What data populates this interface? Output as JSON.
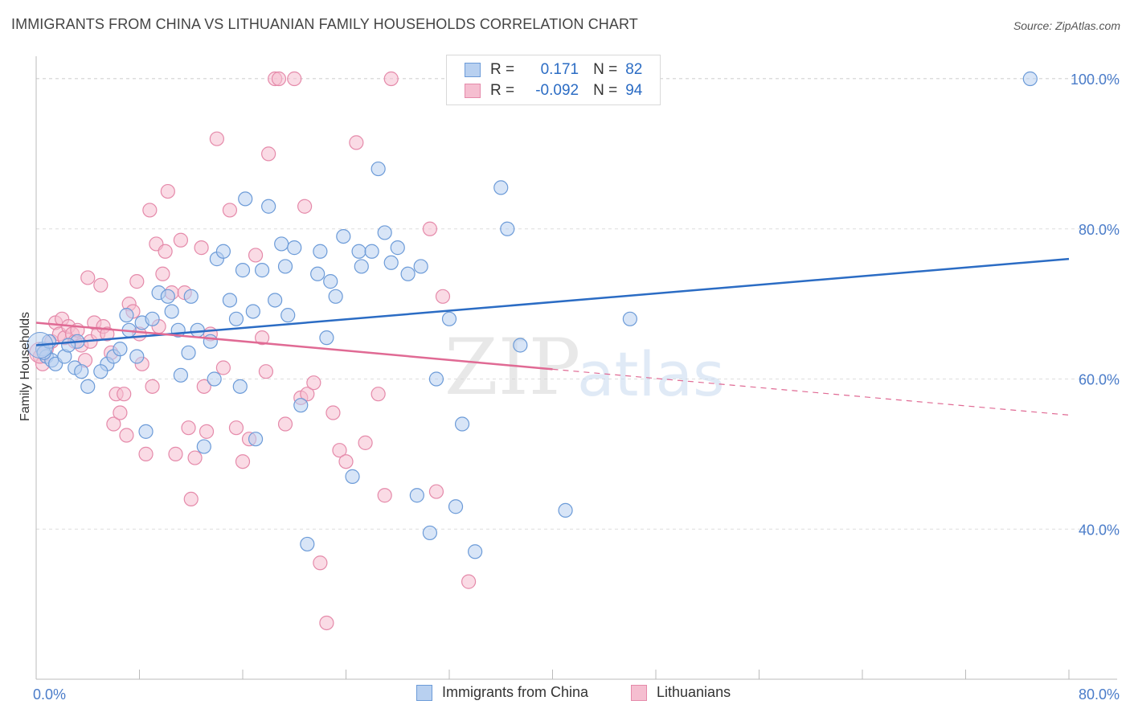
{
  "title": "IMMIGRANTS FROM CHINA VS LITHUANIAN FAMILY HOUSEHOLDS CORRELATION CHART",
  "source": "Source: ZipAtlas.com",
  "legend": {
    "rows": [
      {
        "r_label": "R =",
        "r_value": "0.171",
        "n_label": "N =",
        "n_value": "82"
      },
      {
        "r_label": "R =",
        "r_value": "-0.092",
        "n_label": "N =",
        "n_value": "94"
      }
    ]
  },
  "colors": {
    "blue_fill": "#b8d0f0",
    "blue_stroke": "#6c9bd8",
    "blue_line": "#2b6cc4",
    "pink_fill": "#f5bed0",
    "pink_stroke": "#e58aaa",
    "pink_line": "#e06a94",
    "grid": "#dddddd",
    "tick_text": "#4a7cc9"
  },
  "chart_data": {
    "type": "scatter",
    "title": "IMMIGRANTS FROM CHINA VS LITHUANIAN FAMILY HOUSEHOLDS CORRELATION CHART",
    "xlabel": "",
    "ylabel": "Family Households",
    "xlim": [
      0,
      80
    ],
    "ylim": [
      20,
      103
    ],
    "x_tick_labels": [
      "0.0%",
      "80.0%"
    ],
    "y_ticks": [
      40,
      60,
      80,
      100
    ],
    "y_tick_labels": [
      "40.0%",
      "60.0%",
      "80.0%",
      "100.0%"
    ],
    "grid": true,
    "legend_placement": "top-center",
    "series": [
      {
        "name": "Immigrants from China",
        "color": "#6c9bd8",
        "trend": {
          "x0": 0,
          "y0": 64.5,
          "x1": 80,
          "y1": 76.0,
          "dashed_after": null
        },
        "points": [
          [
            0.5,
            64
          ],
          [
            0.8,
            63
          ],
          [
            1.2,
            62.5
          ],
          [
            1.5,
            62
          ],
          [
            0.6,
            63.5
          ],
          [
            1.0,
            65
          ],
          [
            2.2,
            63
          ],
          [
            3.0,
            61.5
          ],
          [
            3.5,
            61
          ],
          [
            4.0,
            59
          ],
          [
            5.5,
            62
          ],
          [
            5.0,
            61
          ],
          [
            3.2,
            65
          ],
          [
            2.5,
            64.5
          ],
          [
            6.0,
            63
          ],
          [
            6.5,
            64
          ],
          [
            7.2,
            66.5
          ],
          [
            7.0,
            68.5
          ],
          [
            7.8,
            63
          ],
          [
            8.2,
            67.5
          ],
          [
            9.0,
            68
          ],
          [
            8.5,
            53
          ],
          [
            9.5,
            71.5
          ],
          [
            10.2,
            71
          ],
          [
            10.5,
            69
          ],
          [
            11.0,
            66.5
          ],
          [
            11.2,
            60.5
          ],
          [
            11.8,
            63.5
          ],
          [
            12.0,
            71
          ],
          [
            12.5,
            66.5
          ],
          [
            13.0,
            51
          ],
          [
            13.5,
            65
          ],
          [
            13.8,
            60
          ],
          [
            14.0,
            76
          ],
          [
            14.5,
            77
          ],
          [
            15.0,
            70.5
          ],
          [
            15.5,
            68
          ],
          [
            15.8,
            59
          ],
          [
            16.0,
            74.5
          ],
          [
            16.2,
            84
          ],
          [
            16.8,
            69
          ],
          [
            17.0,
            52
          ],
          [
            17.5,
            74.5
          ],
          [
            18.0,
            83
          ],
          [
            18.5,
            70.5
          ],
          [
            19.0,
            78
          ],
          [
            19.3,
            75
          ],
          [
            19.5,
            68.5
          ],
          [
            20.0,
            77.5
          ],
          [
            20.5,
            56.5
          ],
          [
            21.0,
            38
          ],
          [
            21.8,
            74
          ],
          [
            22.0,
            77
          ],
          [
            22.5,
            65.5
          ],
          [
            22.8,
            73
          ],
          [
            23.2,
            71
          ],
          [
            23.8,
            79
          ],
          [
            24.5,
            47
          ],
          [
            25.0,
            77
          ],
          [
            25.2,
            75
          ],
          [
            26.0,
            77
          ],
          [
            26.5,
            88
          ],
          [
            27.0,
            79.5
          ],
          [
            27.5,
            75.5
          ],
          [
            28.0,
            77.5
          ],
          [
            28.8,
            74
          ],
          [
            29.5,
            44.5
          ],
          [
            29.8,
            75
          ],
          [
            30.5,
            39.5
          ],
          [
            31.0,
            60
          ],
          [
            32.0,
            68
          ],
          [
            32.5,
            43
          ],
          [
            33.0,
            54
          ],
          [
            34.0,
            37
          ],
          [
            36.0,
            85.5
          ],
          [
            36.5,
            80
          ],
          [
            37.5,
            64.5
          ],
          [
            41.0,
            42.5
          ],
          [
            46.0,
            68
          ],
          [
            77.0,
            100
          ]
        ]
      },
      {
        "name": "Lithuanians",
        "color": "#e58aaa",
        "trend": {
          "x0": 0,
          "y0": 67.5,
          "x1": 40,
          "y1": 61.3,
          "dashed_to_x": 80,
          "dashed_to_y": 55.2
        },
        "points": [
          [
            0.3,
            63
          ],
          [
            0.5,
            62
          ],
          [
            0.8,
            64
          ],
          [
            1.2,
            65
          ],
          [
            1.5,
            67.5
          ],
          [
            1.8,
            66
          ],
          [
            2.0,
            68
          ],
          [
            2.2,
            65.5
          ],
          [
            2.5,
            67
          ],
          [
            2.8,
            66
          ],
          [
            3.0,
            65
          ],
          [
            3.2,
            66.5
          ],
          [
            3.5,
            64.5
          ],
          [
            3.8,
            62.5
          ],
          [
            4.0,
            73.5
          ],
          [
            4.2,
            65
          ],
          [
            4.5,
            67.5
          ],
          [
            4.8,
            66
          ],
          [
            5.0,
            72.5
          ],
          [
            5.2,
            67
          ],
          [
            5.5,
            66
          ],
          [
            5.8,
            63.5
          ],
          [
            6.0,
            54
          ],
          [
            6.2,
            58
          ],
          [
            6.5,
            55.5
          ],
          [
            6.8,
            58
          ],
          [
            7.0,
            52.5
          ],
          [
            7.2,
            70
          ],
          [
            7.5,
            69
          ],
          [
            7.8,
            73
          ],
          [
            8.0,
            66
          ],
          [
            8.2,
            62
          ],
          [
            8.5,
            50
          ],
          [
            8.8,
            82.5
          ],
          [
            9.0,
            59
          ],
          [
            9.3,
            78
          ],
          [
            9.5,
            67
          ],
          [
            9.8,
            74
          ],
          [
            10.0,
            77
          ],
          [
            10.2,
            85
          ],
          [
            10.5,
            71.5
          ],
          [
            10.8,
            50
          ],
          [
            11.2,
            78.5
          ],
          [
            11.5,
            71.5
          ],
          [
            11.8,
            53.5
          ],
          [
            12.0,
            44
          ],
          [
            12.3,
            49.5
          ],
          [
            12.8,
            77.5
          ],
          [
            13.0,
            59
          ],
          [
            13.2,
            53
          ],
          [
            13.5,
            66
          ],
          [
            14.0,
            92
          ],
          [
            14.5,
            61.5
          ],
          [
            15.0,
            82.5
          ],
          [
            15.5,
            53.5
          ],
          [
            16.0,
            49
          ],
          [
            16.5,
            52
          ],
          [
            17.0,
            76.5
          ],
          [
            17.5,
            65.5
          ],
          [
            17.8,
            61
          ],
          [
            18.0,
            90
          ],
          [
            18.5,
            100
          ],
          [
            18.8,
            100
          ],
          [
            19.3,
            54
          ],
          [
            20.0,
            100
          ],
          [
            20.5,
            57.5
          ],
          [
            20.8,
            83
          ],
          [
            21.0,
            58
          ],
          [
            21.5,
            59.5
          ],
          [
            22.0,
            35.5
          ],
          [
            22.5,
            27.5
          ],
          [
            23.0,
            55.5
          ],
          [
            23.5,
            50.5
          ],
          [
            24.0,
            49
          ],
          [
            24.8,
            91.5
          ],
          [
            25.5,
            51.5
          ],
          [
            26.5,
            58
          ],
          [
            27.0,
            44.5
          ],
          [
            27.5,
            100
          ],
          [
            30.5,
            80
          ],
          [
            31.0,
            45
          ],
          [
            31.5,
            71
          ],
          [
            33.5,
            33
          ]
        ]
      }
    ]
  }
}
